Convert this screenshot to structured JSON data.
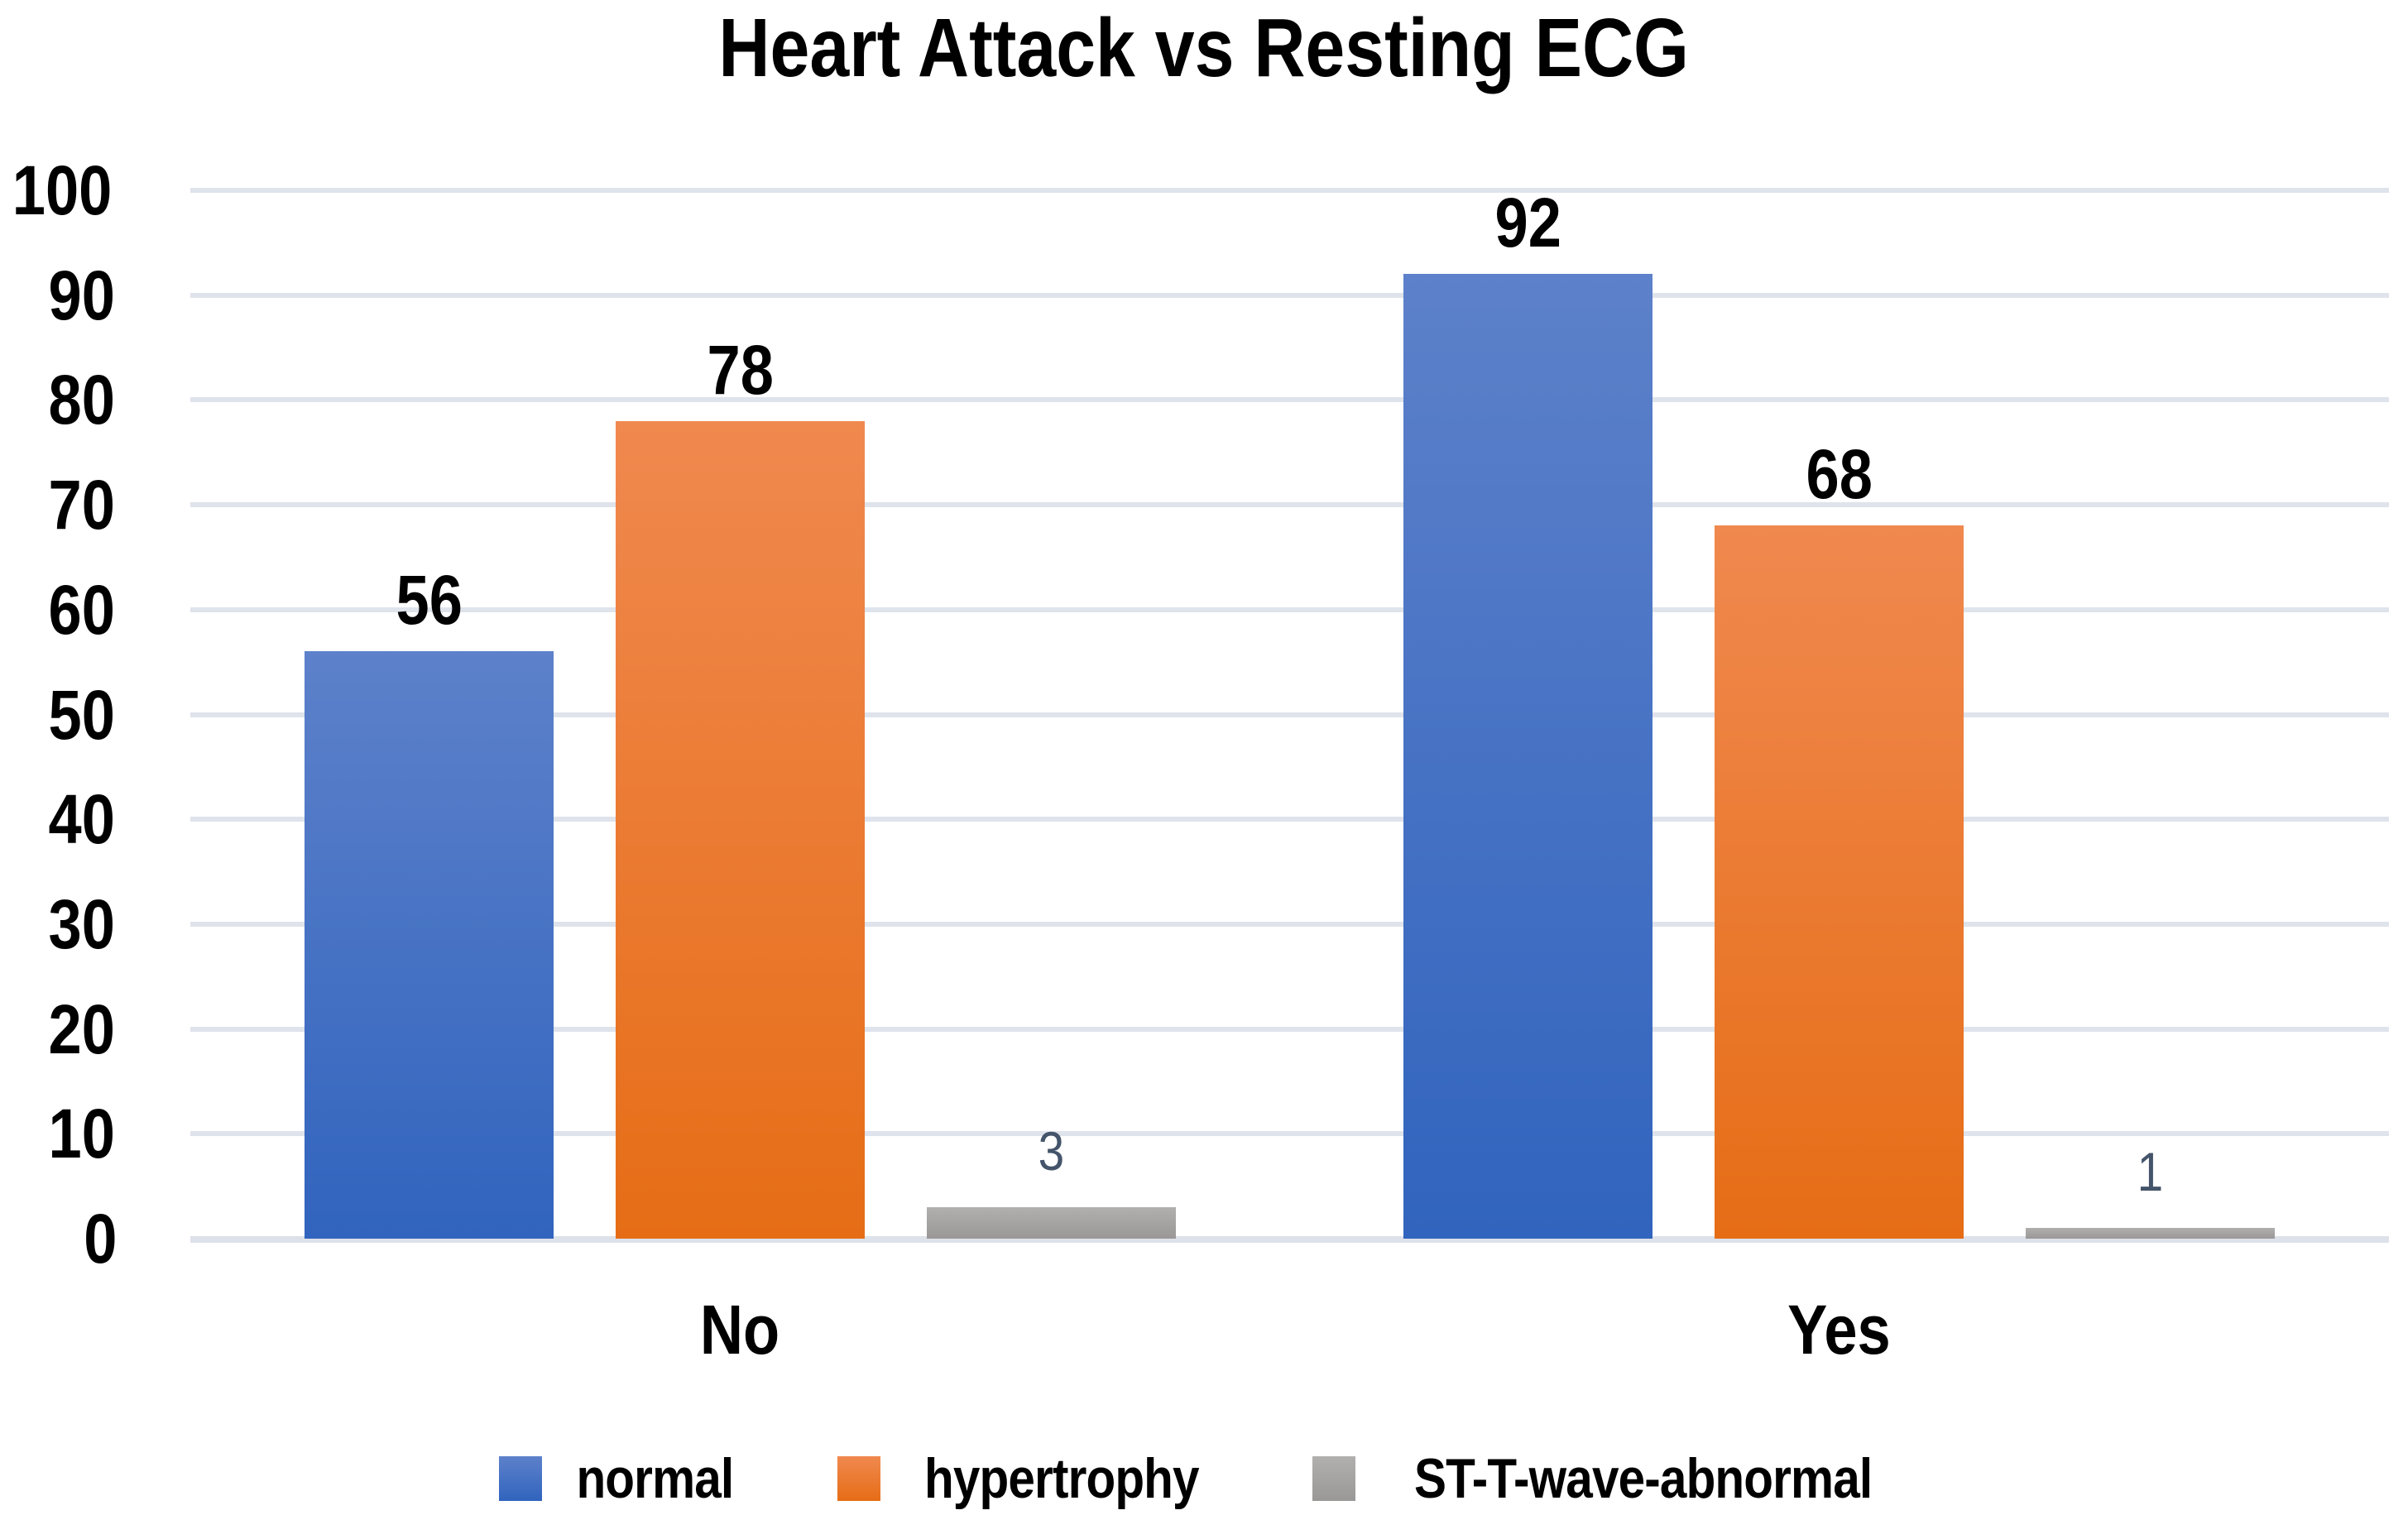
{
  "title": "Heart Attack vs Resting ECG",
  "chart_data": {
    "type": "bar",
    "title": "Heart Attack vs Resting ECG",
    "categories": [
      "No",
      "Yes"
    ],
    "series": [
      {
        "name": "normal",
        "values": [
          56,
          92
        ],
        "color_top": "#5D81CA",
        "color_bottom": "#3164BE",
        "label_style": "bold-black"
      },
      {
        "name": "hypertrophy",
        "values": [
          78,
          68
        ],
        "color_top": "#F0894F",
        "color_bottom": "#E66D16",
        "label_style": "bold-black"
      },
      {
        "name": "ST-T-wave-abnormal",
        "values": [
          3,
          1
        ],
        "color_top": "#B2AFAF",
        "color_bottom": "#9A9797",
        "label_style": "slate"
      }
    ],
    "data_labels": {
      "No": {
        "normal": "56",
        "hypertrophy": "78",
        "ST-T-wave-abnormal": "3"
      },
      "Yes": {
        "normal": "92",
        "hypertrophy": "68",
        "ST-T-wave-abnormal": "1"
      }
    },
    "xlabel": "",
    "ylabel": "",
    "ylim": [
      0,
      100
    ],
    "y_axis": {
      "ticks": [
        100,
        90,
        80,
        70,
        60,
        50,
        40,
        30,
        20,
        10,
        0
      ]
    },
    "grid": true,
    "legend_position": "bottom",
    "legend_entries": [
      "normal",
      "hypertrophy",
      "ST-T-wave-abnormal"
    ]
  },
  "colors": {
    "background": "#ffffff",
    "gridline": "#DFE3EB",
    "baseline": "#DDE1E9",
    "text": "#000000",
    "slate_label": "#44546A"
  }
}
